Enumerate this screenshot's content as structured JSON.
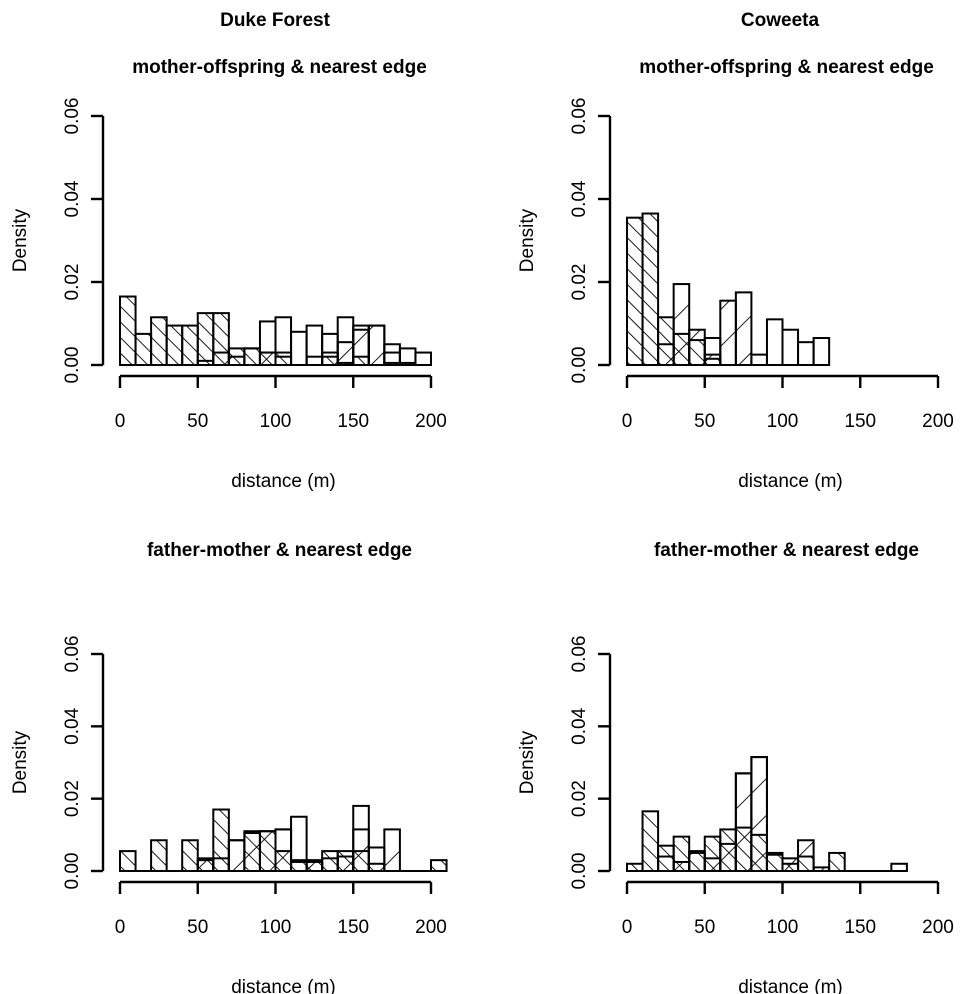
{
  "column_titles": [
    "Duke Forest",
    "Coweeta"
  ],
  "chart_data": [
    {
      "type": "histogram",
      "site": "Duke Forest",
      "title": "mother-offspring & nearest edge",
      "xlabel": "distance (m)",
      "ylabel": "Density",
      "xlim": [
        0,
        200
      ],
      "ylim": [
        0,
        0.06
      ],
      "xticks": [
        "0",
        "50",
        "100",
        "150",
        "200"
      ],
      "yticks": [
        "0.00",
        "0.02",
        "0.04",
        "0.06"
      ],
      "bin_width": 10,
      "series": [
        {
          "pattern": "hatch-back",
          "bins": [
            [
              0,
              0.0165
            ],
            [
              10,
              0.0075
            ],
            [
              20,
              0.0115
            ],
            [
              30,
              0.0095
            ],
            [
              40,
              0.0095
            ],
            [
              50,
              0.0125
            ],
            [
              60,
              0.0125
            ],
            [
              70,
              0.004
            ],
            [
              80,
              0.004
            ],
            [
              90,
              0.003
            ],
            [
              100,
              0.003
            ],
            [
              110,
              0
            ],
            [
              120,
              0
            ],
            [
              130,
              0.002
            ],
            [
              140,
              0.0005
            ],
            [
              150,
              0.002
            ],
            [
              160,
              0
            ],
            [
              170,
              0.0005
            ],
            [
              180,
              0.0005
            ],
            [
              190,
              0
            ]
          ]
        },
        {
          "pattern": "hatch-forward",
          "bins": [
            [
              0,
              0
            ],
            [
              10,
              0
            ],
            [
              20,
              0
            ],
            [
              30,
              0
            ],
            [
              40,
              0
            ],
            [
              50,
              0.001
            ],
            [
              60,
              0.003
            ],
            [
              70,
              0.002
            ],
            [
              80,
              0.004
            ],
            [
              90,
              0.003
            ],
            [
              100,
              0.002
            ],
            [
              110,
              0
            ],
            [
              120,
              0.002
            ],
            [
              130,
              0.003
            ],
            [
              140,
              0.0055
            ],
            [
              150,
              0.0085
            ],
            [
              160,
              0.0095
            ],
            [
              170,
              0.003
            ],
            [
              180,
              0
            ],
            [
              190,
              0
            ]
          ]
        },
        {
          "pattern": "open",
          "bins": [
            [
              0,
              0
            ],
            [
              10,
              0
            ],
            [
              20,
              0
            ],
            [
              30,
              0
            ],
            [
              40,
              0
            ],
            [
              50,
              0
            ],
            [
              60,
              0
            ],
            [
              70,
              0
            ],
            [
              80,
              0
            ],
            [
              90,
              0.0105
            ],
            [
              100,
              0.0115
            ],
            [
              110,
              0.008
            ],
            [
              120,
              0.0095
            ],
            [
              130,
              0.0075
            ],
            [
              140,
              0.0115
            ],
            [
              150,
              0.0095
            ],
            [
              160,
              0.0095
            ],
            [
              170,
              0.005
            ],
            [
              180,
              0.004
            ],
            [
              190,
              0.003
            ]
          ]
        }
      ]
    },
    {
      "type": "histogram",
      "site": "Coweeta",
      "title": "mother-offspring & nearest edge",
      "xlabel": "distance (m)",
      "ylabel": "Density",
      "xlim": [
        0,
        200
      ],
      "ylim": [
        0,
        0.06
      ],
      "xticks": [
        "0",
        "50",
        "100",
        "150",
        "200"
      ],
      "yticks": [
        "0.00",
        "0.02",
        "0.04",
        "0.06"
      ],
      "bin_width": 10,
      "series": [
        {
          "pattern": "hatch-back",
          "bins": [
            [
              0,
              0.0355
            ],
            [
              10,
              0.0365
            ],
            [
              20,
              0.0115
            ],
            [
              30,
              0.0075
            ],
            [
              40,
              0.006
            ],
            [
              50,
              0.0015
            ],
            [
              60,
              0
            ],
            [
              70,
              0
            ],
            [
              80,
              0
            ],
            [
              90,
              0
            ],
            [
              100,
              0
            ],
            [
              110,
              0
            ],
            [
              120,
              0
            ]
          ]
        },
        {
          "pattern": "hatch-forward",
          "bins": [
            [
              0,
              0
            ],
            [
              10,
              0
            ],
            [
              20,
              0.005
            ],
            [
              30,
              0.0195
            ],
            [
              40,
              0.0085
            ],
            [
              50,
              0.0025
            ],
            [
              60,
              0.0155
            ],
            [
              70,
              0.0175
            ],
            [
              80,
              0
            ],
            [
              90,
              0
            ],
            [
              100,
              0
            ],
            [
              110,
              0
            ],
            [
              120,
              0
            ]
          ]
        },
        {
          "pattern": "open",
          "bins": [
            [
              0,
              0
            ],
            [
              10,
              0
            ],
            [
              20,
              0
            ],
            [
              30,
              0
            ],
            [
              40,
              0
            ],
            [
              50,
              0.0065
            ],
            [
              60,
              0
            ],
            [
              70,
              0
            ],
            [
              80,
              0.0025
            ],
            [
              90,
              0.011
            ],
            [
              100,
              0.0085
            ],
            [
              110,
              0.0055
            ],
            [
              120,
              0.0065
            ]
          ]
        }
      ]
    },
    {
      "type": "histogram",
      "site": "Duke Forest",
      "title": "father-mother & nearest edge",
      "xlabel": "distance (m)",
      "ylabel": "Density",
      "xlim": [
        0,
        200
      ],
      "ylim": [
        0,
        0.06
      ],
      "xticks": [
        "0",
        "50",
        "100",
        "150",
        "200"
      ],
      "yticks": [
        "0.00",
        "0.02",
        "0.04",
        "0.06"
      ],
      "bin_width": 10,
      "series": [
        {
          "pattern": "hatch-back",
          "bins": [
            [
              0,
              0.0055
            ],
            [
              20,
              0.0085
            ],
            [
              40,
              0.0085
            ],
            [
              50,
              0.003
            ],
            [
              60,
              0.017
            ],
            [
              80,
              0.011
            ],
            [
              90,
              0.011
            ],
            [
              100,
              0.0055
            ],
            [
              110,
              0.003
            ],
            [
              120,
              0.003
            ],
            [
              130,
              0.0055
            ],
            [
              140,
              0.0055
            ],
            [
              150,
              0.0055
            ],
            [
              160,
              0.002
            ],
            [
              200,
              0.003
            ]
          ]
        },
        {
          "pattern": "hatch-forward",
          "bins": [
            [
              50,
              0.0035
            ],
            [
              60,
              0.0035
            ],
            [
              70,
              0.0085
            ],
            [
              80,
              0.0105
            ],
            [
              90,
              0.011
            ],
            [
              100,
              0.0115
            ],
            [
              110,
              0.0025
            ],
            [
              120,
              0.0025
            ],
            [
              130,
              0.0035
            ],
            [
              140,
              0.004
            ],
            [
              150,
              0.0115
            ],
            [
              160,
              0.0065
            ],
            [
              170,
              0.0115
            ]
          ]
        },
        {
          "pattern": "open",
          "bins": [
            [
              70,
              0.0085
            ],
            [
              100,
              0.0115
            ],
            [
              110,
              0.015
            ],
            [
              150,
              0.018
            ]
          ]
        }
      ]
    },
    {
      "type": "histogram",
      "site": "Coweeta",
      "title": "father-mother & nearest edge",
      "xlabel": "distance (m)",
      "ylabel": "Density",
      "xlim": [
        0,
        200
      ],
      "ylim": [
        0,
        0.06
      ],
      "xticks": [
        "0",
        "50",
        "100",
        "150",
        "200"
      ],
      "yticks": [
        "0.00",
        "0.02",
        "0.04",
        "0.06"
      ],
      "bin_width": 10,
      "series": [
        {
          "pattern": "hatch-back",
          "bins": [
            [
              0,
              0.002
            ],
            [
              10,
              0.0165
            ],
            [
              20,
              0.007
            ],
            [
              30,
              0.0095
            ],
            [
              40,
              0.005
            ],
            [
              50,
              0.0095
            ],
            [
              60,
              0.0115
            ],
            [
              70,
              0.012
            ],
            [
              80,
              0.01
            ],
            [
              90,
              0.005
            ],
            [
              100,
              0.002
            ],
            [
              110,
              0.004
            ],
            [
              130,
              0.005
            ]
          ]
        },
        {
          "pattern": "hatch-forward",
          "bins": [
            [
              20,
              0.004
            ],
            [
              30,
              0.0025
            ],
            [
              40,
              0.0055
            ],
            [
              50,
              0.0035
            ],
            [
              60,
              0.0075
            ],
            [
              70,
              0.027
            ],
            [
              80,
              0.0315
            ],
            [
              90,
              0.0045
            ],
            [
              100,
              0.0035
            ],
            [
              110,
              0.0085
            ],
            [
              120,
              0.001
            ]
          ]
        },
        {
          "pattern": "open",
          "bins": [
            [
              70,
              0.027
            ],
            [
              80,
              0.0315
            ],
            [
              170,
              0.002
            ]
          ]
        }
      ]
    }
  ]
}
